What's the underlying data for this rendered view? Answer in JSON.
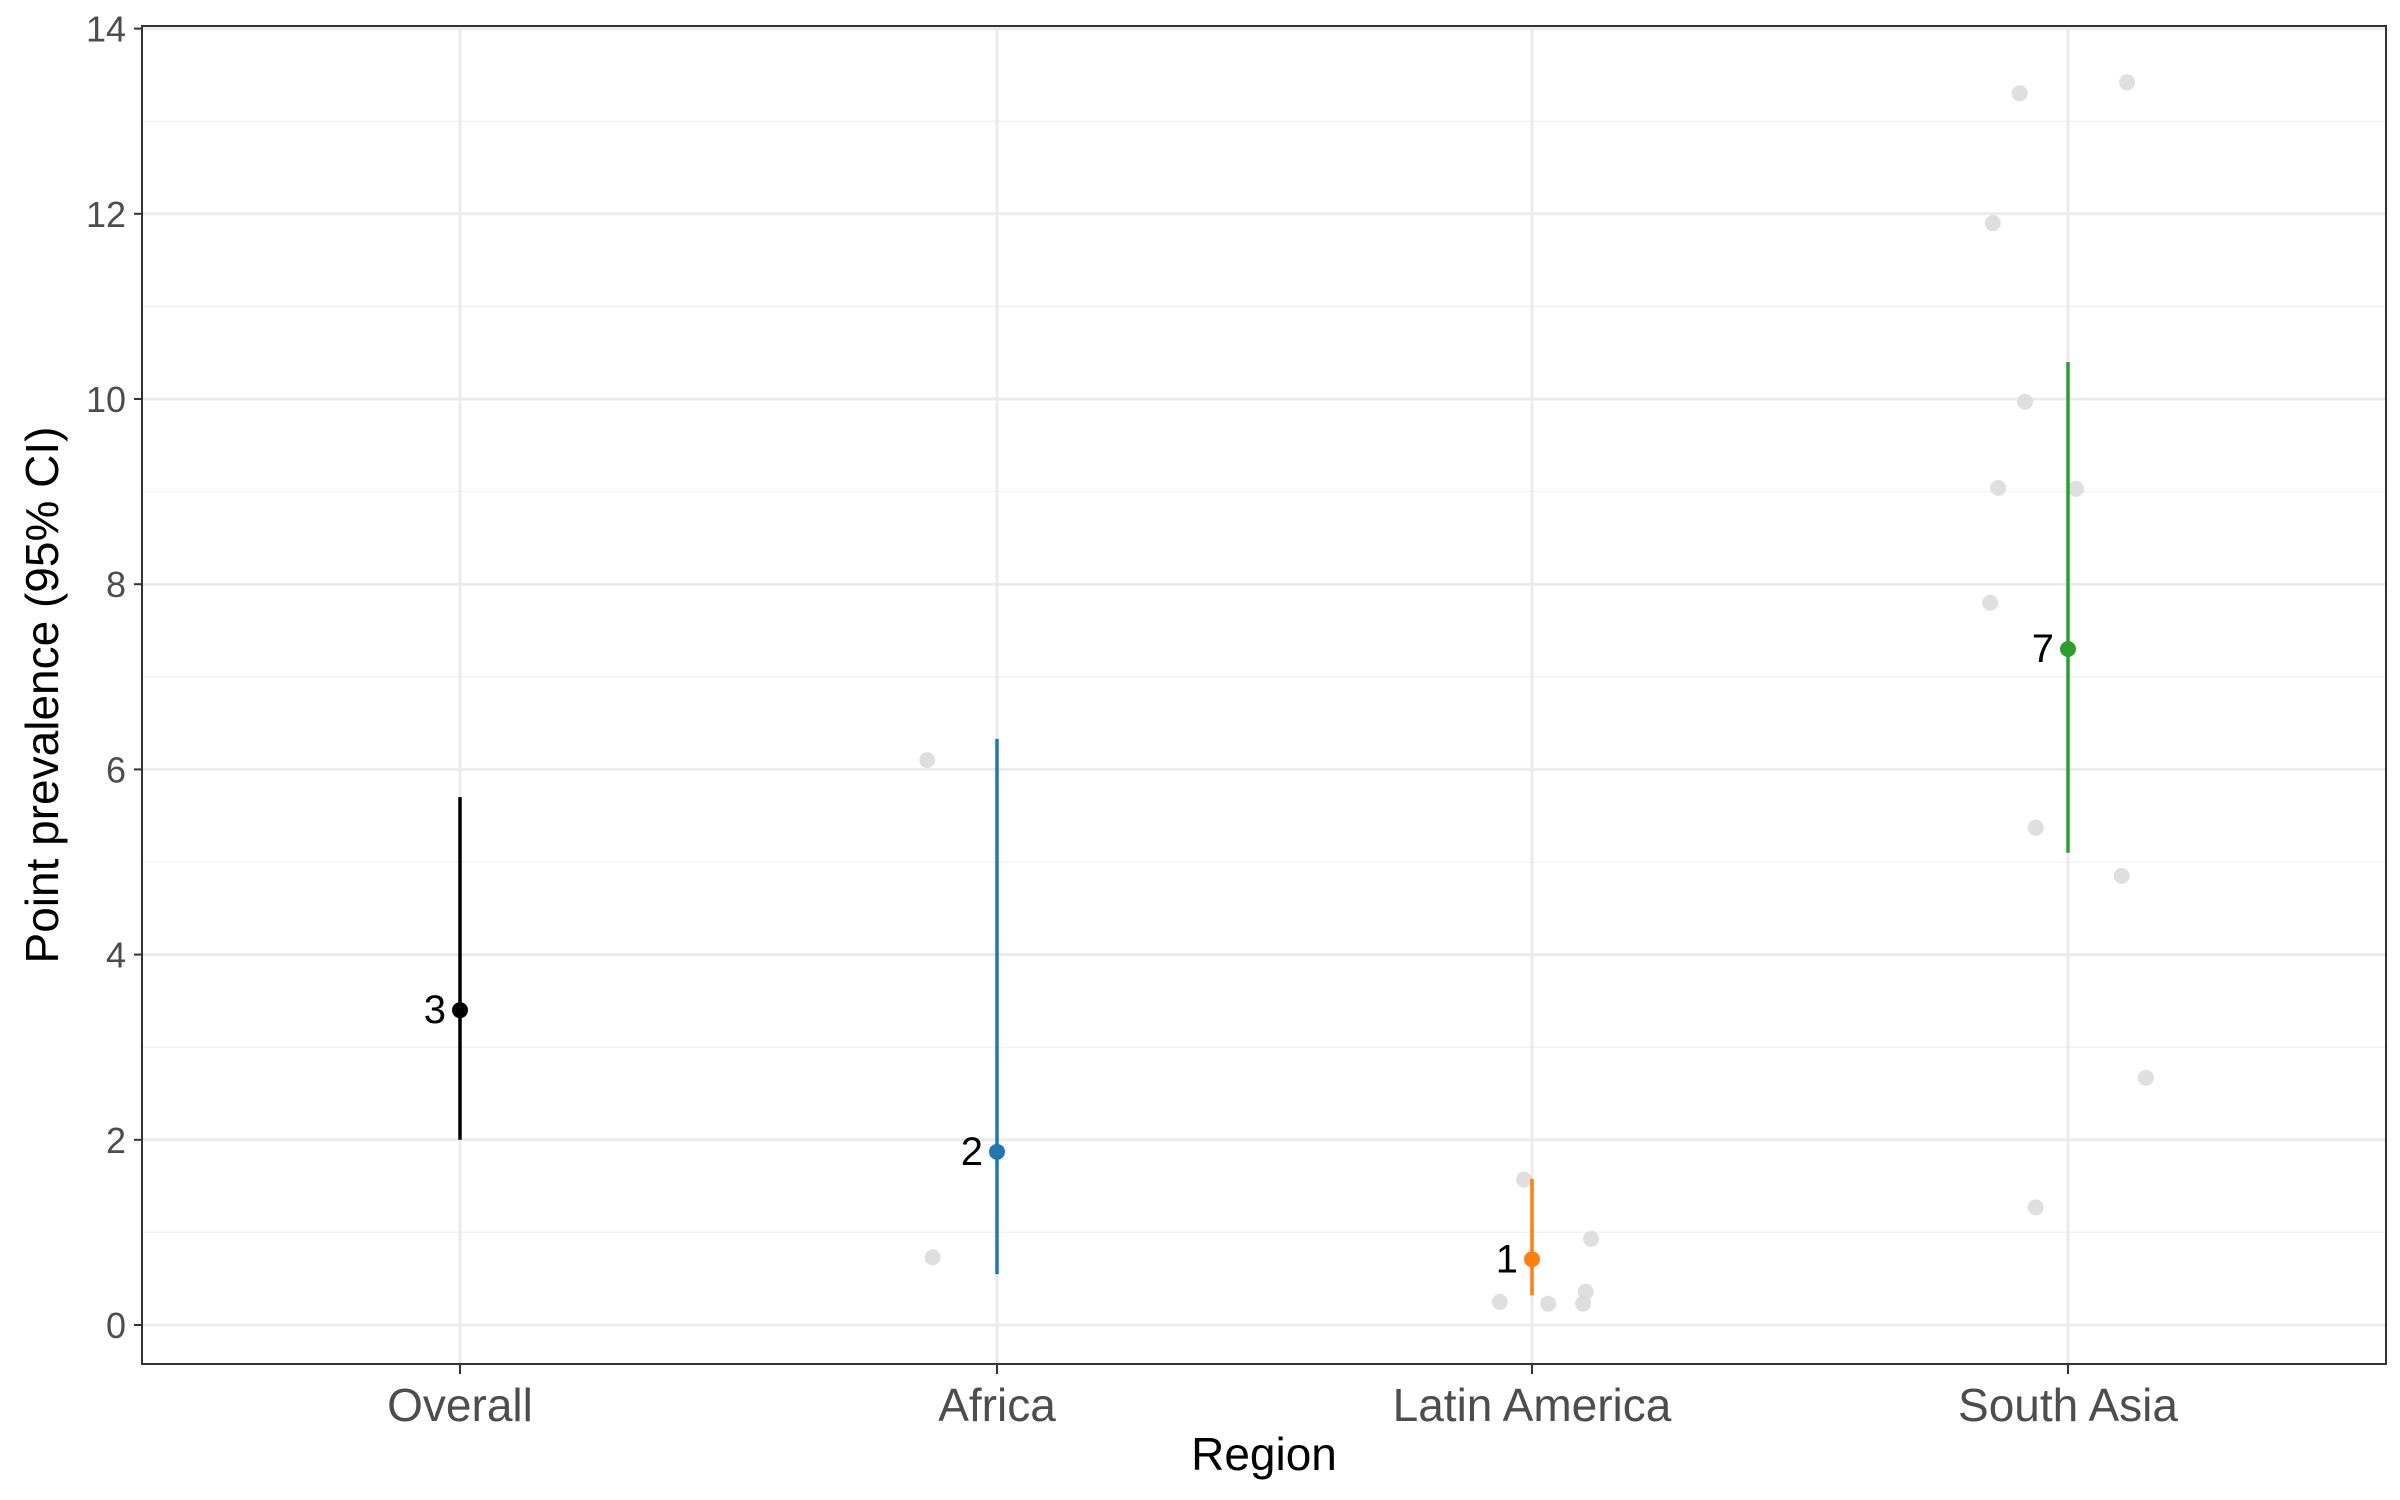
{
  "chart_data": {
    "type": "scatter",
    "xlabel": "Region",
    "ylabel": "Point prevalence (95% CI)",
    "categories": [
      "Overall",
      "Africa",
      "Latin America",
      "South Asia"
    ],
    "ylim": [
      -0.4,
      14.0
    ],
    "yticks": [
      0,
      2,
      4,
      6,
      8,
      10,
      12,
      14
    ],
    "grid": true,
    "legend": "none",
    "estimates": [
      {
        "category": "Overall",
        "value": 3.4,
        "lower": 2.0,
        "upper": 5.7,
        "label": "3",
        "color": "#000000"
      },
      {
        "category": "Africa",
        "value": 1.87,
        "lower": 0.55,
        "upper": 6.33,
        "label": "2",
        "color": "#1f77b4"
      },
      {
        "category": "Latin America",
        "value": 0.71,
        "lower": 0.32,
        "upper": 1.58,
        "label": "1",
        "color": "#ff7f0e"
      },
      {
        "category": "South Asia",
        "value": 7.3,
        "lower": 5.1,
        "upper": 10.4,
        "label": "7",
        "color": "#2ca02c"
      }
    ],
    "study_points": [
      {
        "category": "Africa",
        "offset": -0.13,
        "value": 6.1
      },
      {
        "category": "Africa",
        "offset": -0.12,
        "value": 0.73
      },
      {
        "category": "Latin America",
        "offset": -0.015,
        "value": 1.57
      },
      {
        "category": "Latin America",
        "offset": 0.11,
        "value": 0.93
      },
      {
        "category": "Latin America",
        "offset": 0.1,
        "value": 0.36
      },
      {
        "category": "Latin America",
        "offset": -0.06,
        "value": 0.25
      },
      {
        "category": "Latin America",
        "offset": 0.03,
        "value": 0.23
      },
      {
        "category": "Latin America",
        "offset": 0.095,
        "value": 0.23
      },
      {
        "category": "South Asia",
        "offset": 0.11,
        "value": 13.42
      },
      {
        "category": "South Asia",
        "offset": -0.09,
        "value": 13.3
      },
      {
        "category": "South Asia",
        "offset": -0.14,
        "value": 11.9
      },
      {
        "category": "South Asia",
        "offset": -0.08,
        "value": 9.97
      },
      {
        "category": "South Asia",
        "offset": -0.13,
        "value": 9.04
      },
      {
        "category": "South Asia",
        "offset": 0.015,
        "value": 9.03
      },
      {
        "category": "South Asia",
        "offset": -0.145,
        "value": 7.8
      },
      {
        "category": "South Asia",
        "offset": -0.06,
        "value": 5.37
      },
      {
        "category": "South Asia",
        "offset": 0.1,
        "value": 4.85
      },
      {
        "category": "South Asia",
        "offset": 0.145,
        "value": 2.67
      },
      {
        "category": "South Asia",
        "offset": -0.06,
        "value": 1.27
      }
    ],
    "colors": {
      "study_point": "#d9d9d9",
      "grid_major": "#ebebeb",
      "grid_minor": "#f2f2f2",
      "panel_border": "#333333"
    }
  }
}
